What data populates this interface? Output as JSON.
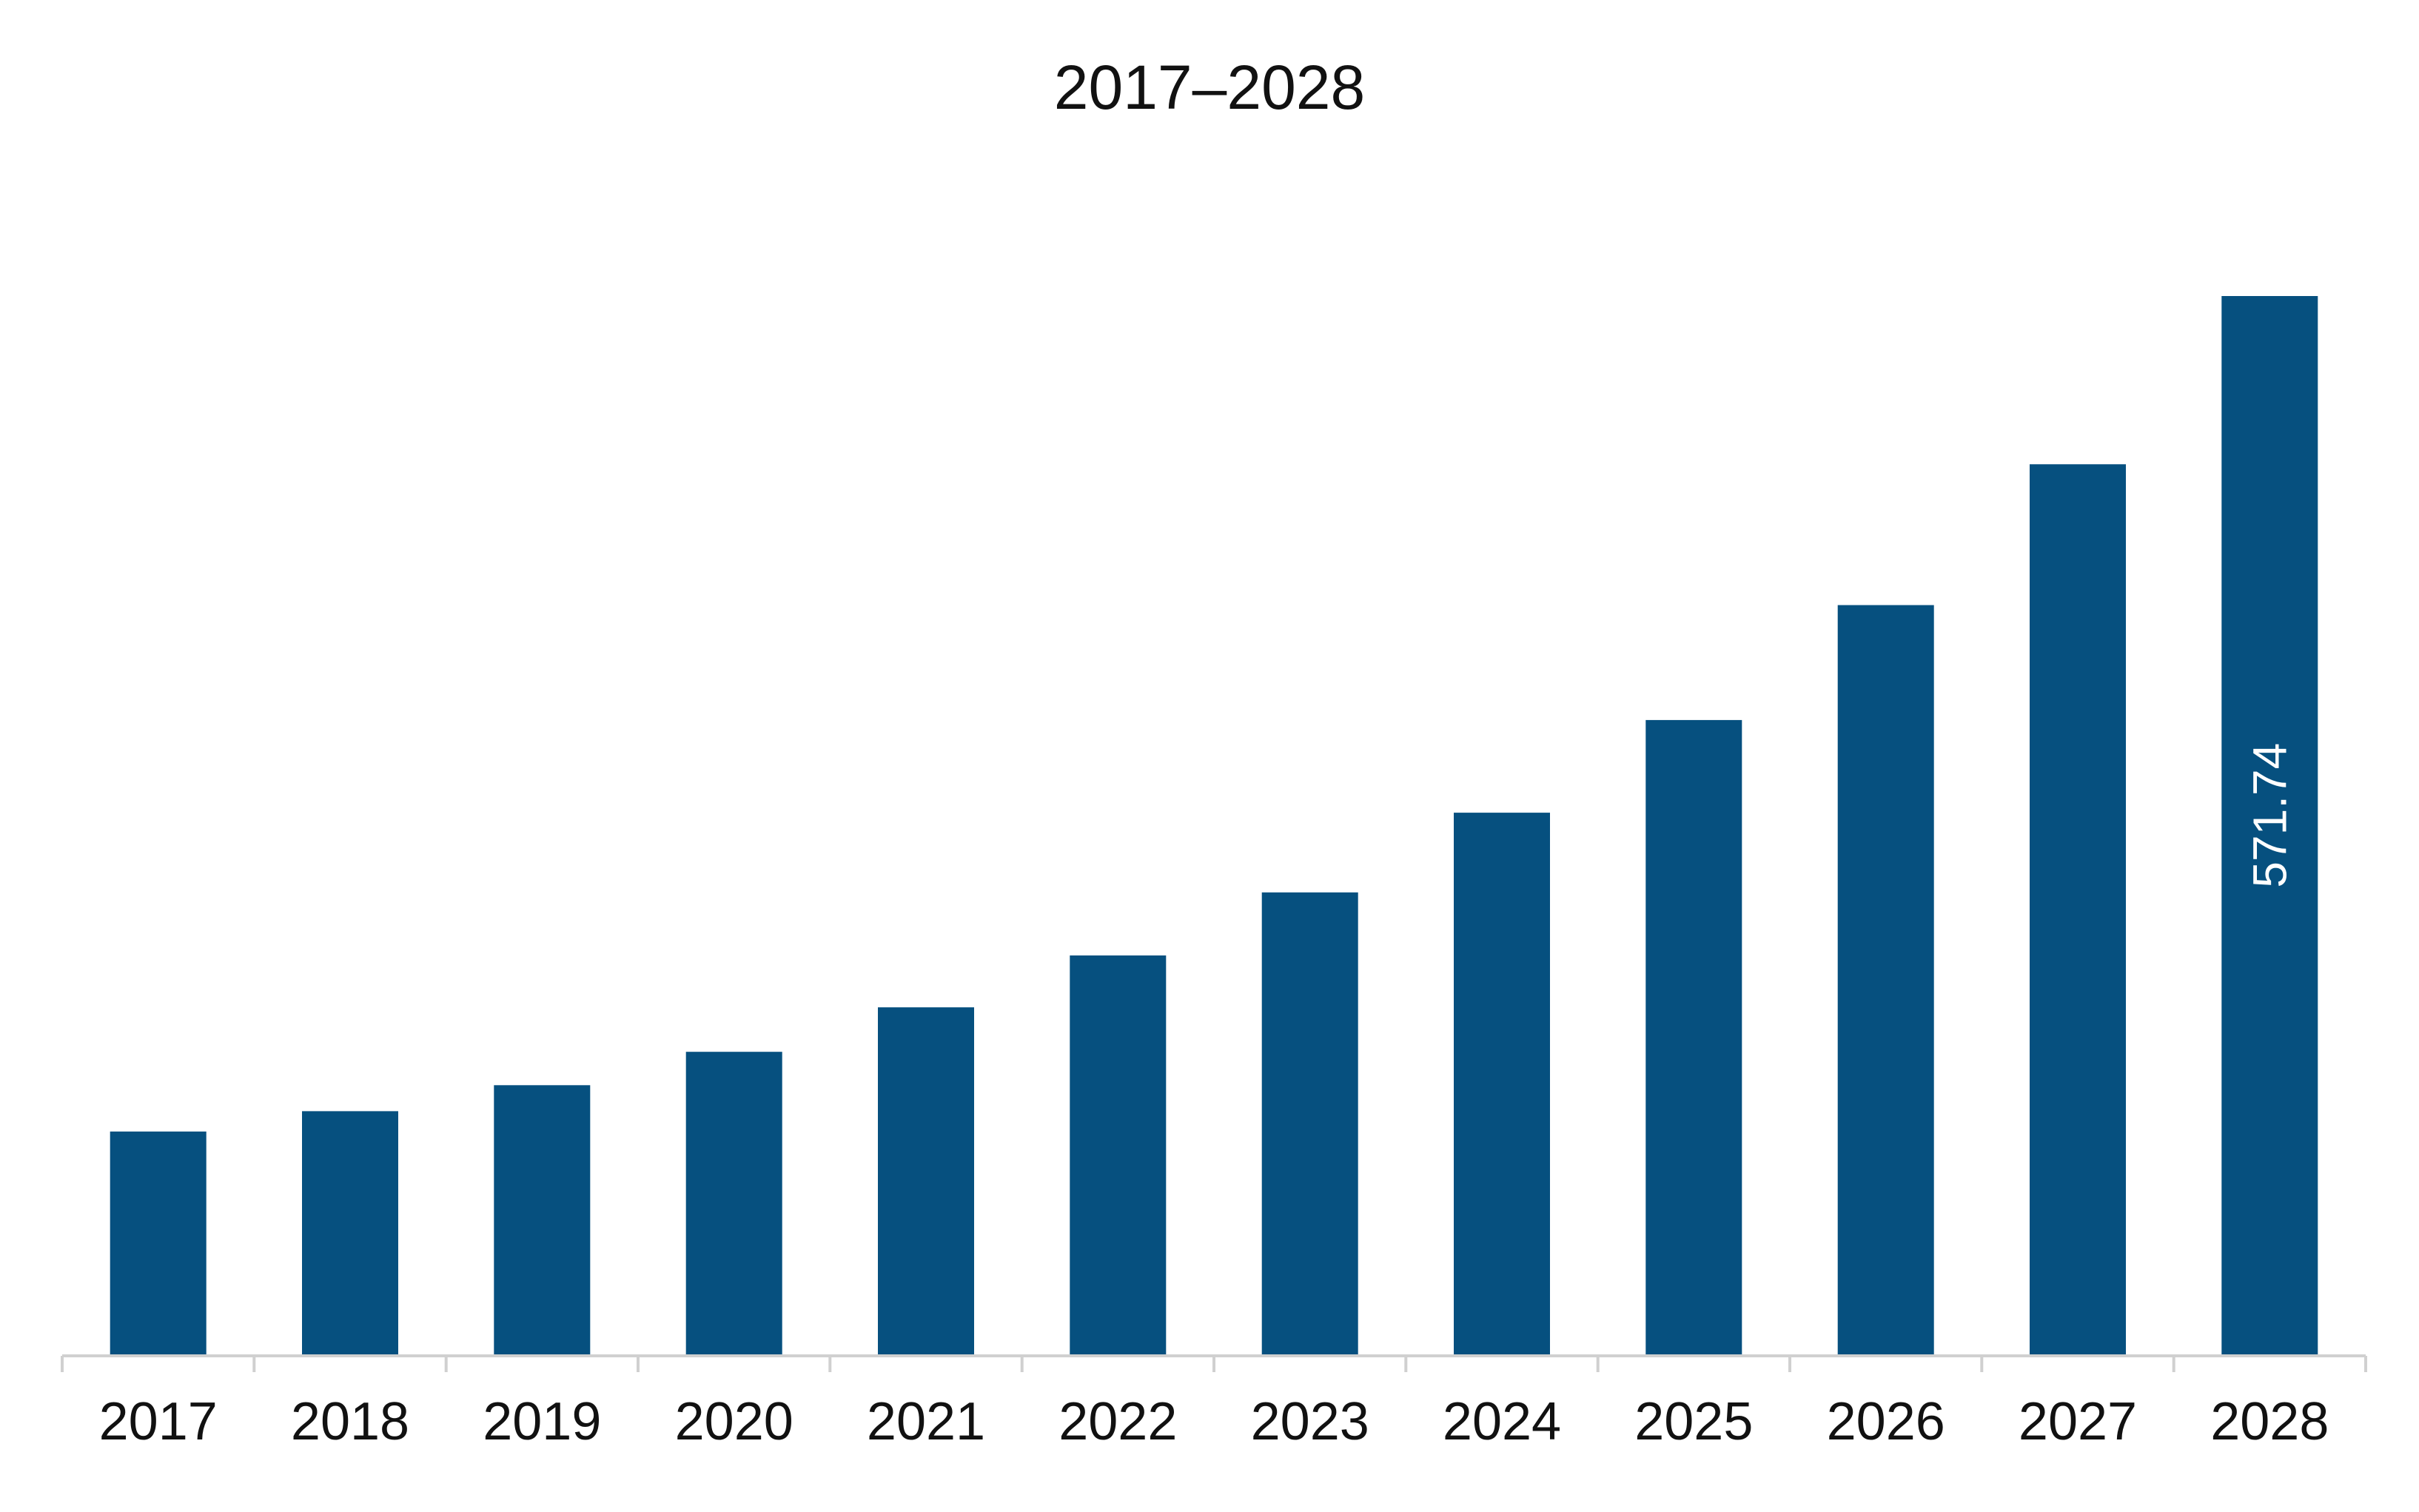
{
  "chart_data": {
    "type": "bar",
    "title": "2017–2028",
    "xlabel": "",
    "ylabel": "",
    "categories": [
      "2017",
      "2018",
      "2019",
      "2020",
      "2021",
      "2022",
      "2023",
      "2024",
      "2025",
      "2026",
      "2027",
      "2028"
    ],
    "values": [
      121,
      132,
      146,
      164,
      188,
      216,
      250,
      293,
      343,
      405,
      481,
      571.74
    ],
    "data_labels": [
      {
        "category": "2028",
        "text": "571.74",
        "orientation": "vertical"
      }
    ],
    "ylim": [
      0,
      600
    ],
    "grid": false,
    "legend": "none",
    "bar_color": "#06507F",
    "axis_color": "#D0D0D0"
  }
}
